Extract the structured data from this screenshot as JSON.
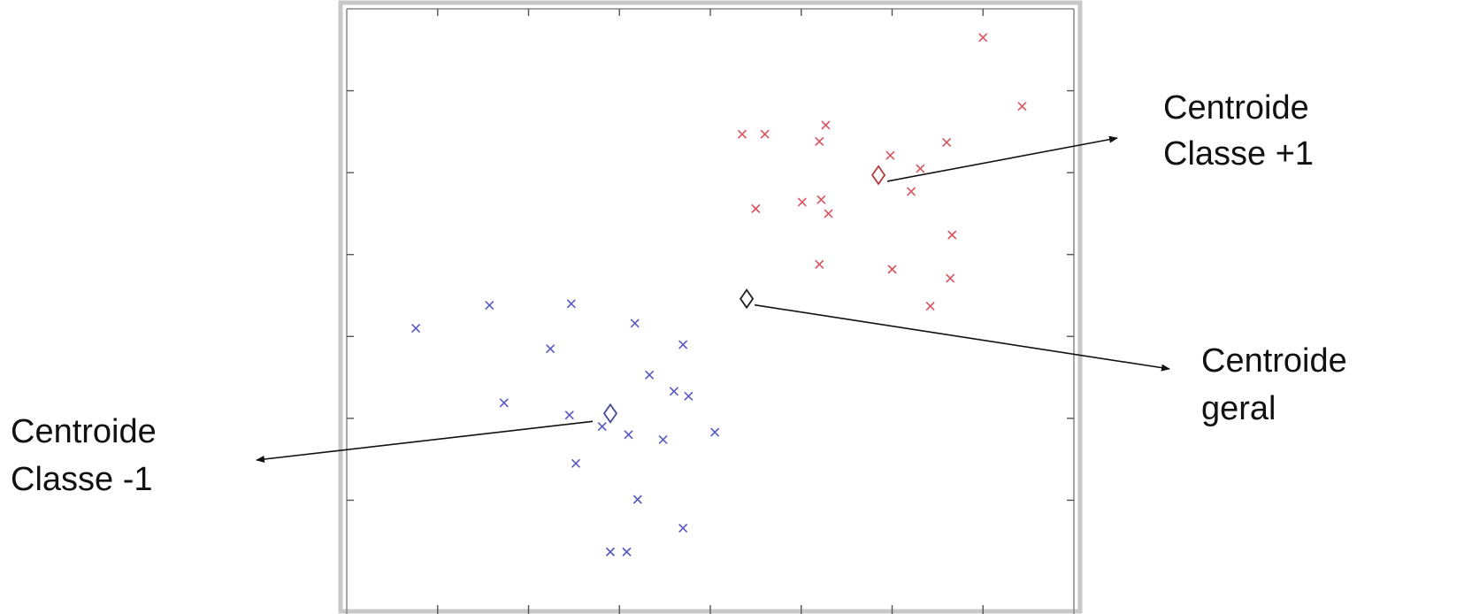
{
  "chart_data": {
    "type": "scatter",
    "xlim": [
      0,
      8
    ],
    "ylim": [
      0,
      7
    ],
    "grid": false,
    "legend": "none",
    "x_tick_count": 9,
    "y_tick_count": 8,
    "colors": {
      "class_pos": "#d9535e",
      "class_neg": "#5858c0",
      "centroid_pos": "#b03a3a",
      "centroid_neg": "#4a4a9a",
      "centroid_general": "#222222",
      "frame": "#888888",
      "frame_shadow": "#c8c8c8"
    },
    "series": [
      {
        "key": "pos",
        "marker": "x",
        "points": [
          [
            7.0,
            6.65
          ],
          [
            7.43,
            5.81
          ],
          [
            5.27,
            5.58
          ],
          [
            4.35,
            5.47
          ],
          [
            4.6,
            5.47
          ],
          [
            5.2,
            5.38
          ],
          [
            6.6,
            5.37
          ],
          [
            5.98,
            5.21
          ],
          [
            6.31,
            5.05
          ],
          [
            6.21,
            4.77
          ],
          [
            5.22,
            4.67
          ],
          [
            5.01,
            4.64
          ],
          [
            4.5,
            4.56
          ],
          [
            5.3,
            4.5
          ],
          [
            6.66,
            4.24
          ],
          [
            5.2,
            3.88
          ],
          [
            6.0,
            3.82
          ],
          [
            6.64,
            3.71
          ],
          [
            6.42,
            3.37
          ]
        ]
      },
      {
        "key": "neg",
        "marker": "x",
        "points": [
          [
            0.76,
            3.1
          ],
          [
            1.57,
            3.38
          ],
          [
            2.47,
            3.4
          ],
          [
            3.17,
            3.16
          ],
          [
            3.7,
            2.9
          ],
          [
            2.24,
            2.85
          ],
          [
            3.33,
            2.53
          ],
          [
            3.6,
            2.33
          ],
          [
            3.76,
            2.27
          ],
          [
            1.73,
            2.19
          ],
          [
            2.45,
            2.04
          ],
          [
            2.81,
            1.9
          ],
          [
            4.05,
            1.83
          ],
          [
            3.1,
            1.8
          ],
          [
            3.48,
            1.74
          ],
          [
            2.52,
            1.45
          ],
          [
            3.2,
            1.01
          ],
          [
            3.7,
            0.66
          ],
          [
            2.9,
            0.37
          ],
          [
            3.08,
            0.37
          ]
        ]
      }
    ],
    "centroids": [
      {
        "key": "pos",
        "x": 5.85,
        "y": 4.97
      },
      {
        "key": "neg",
        "x": 2.9,
        "y": 2.06
      },
      {
        "key": "general",
        "x": 4.4,
        "y": 3.46
      }
    ]
  },
  "annotations": {
    "centroid_pos": {
      "line1": "Centroide",
      "line2": "Classe +1"
    },
    "centroid_general": {
      "line1": "Centroide",
      "line2": "geral"
    },
    "centroid_neg": {
      "line1": "Centroide",
      "line2": "Classe -1"
    }
  }
}
